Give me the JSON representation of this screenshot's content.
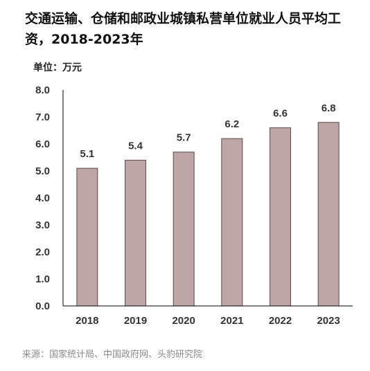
{
  "title": "交通运输、仓储和邮政业城镇私营单位就业人员平均工资，2018-2023年",
  "unit_label": "单位：万元",
  "source": "来源：国家统计局、中国政府网、头豹研究院",
  "colors": {
    "bar": "#bfa6a6",
    "bar_stroke": "#5a4a4a",
    "axis": "#000000"
  },
  "chart_data": {
    "type": "bar",
    "title": "交通运输、仓储和邮政业城镇私营单位就业人员平均工资，2018-2023年",
    "ylabel": "单位：万元",
    "xlabel": "",
    "categories": [
      "2018",
      "2019",
      "2020",
      "2021",
      "2022",
      "2023"
    ],
    "values": [
      5.1,
      5.4,
      5.7,
      6.2,
      6.6,
      6.8
    ],
    "value_labels": [
      "5.1",
      "5.4",
      "5.7",
      "6.2",
      "6.6",
      "6.8"
    ],
    "ylim": [
      0,
      8
    ],
    "yticks": [
      "0.0",
      "1.0",
      "2.0",
      "3.0",
      "4.0",
      "5.0",
      "6.0",
      "7.0",
      "8.0"
    ],
    "grid": false,
    "legend": "none"
  }
}
